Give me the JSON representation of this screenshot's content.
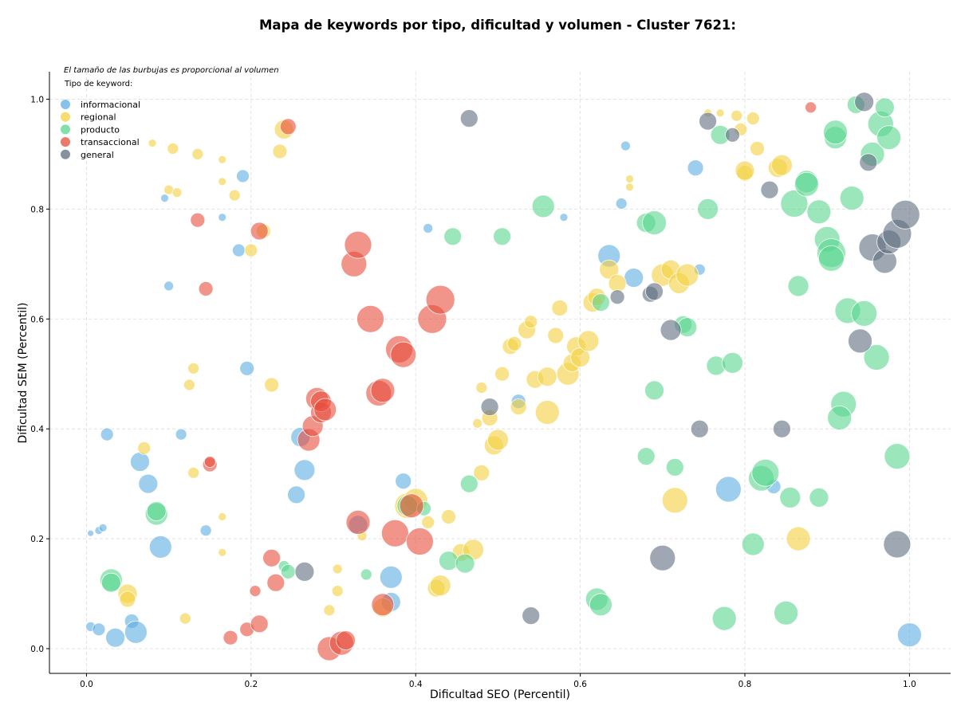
{
  "chart_data": {
    "type": "scatter",
    "title": "Mapa de keywords por tipo, dificultad y volumen - Cluster 7621:",
    "xlabel": "Dificultad SEO (Percentil)",
    "ylabel": "Dificultad SEM (Percentil)",
    "xlim": [
      -0.045,
      1.05
    ],
    "ylim": [
      -0.045,
      1.05
    ],
    "x_ticks": [
      "0.0",
      "0.2",
      "0.4",
      "0.6",
      "0.8",
      "1.0"
    ],
    "y_ticks": [
      "0.0",
      "0.2",
      "0.4",
      "0.6",
      "0.8",
      "1.0"
    ],
    "grid": true,
    "legend_position": "top-left",
    "annotation": "El tamaño de las burbujas es proporcional al volumen",
    "legend_title": "Tipo de keyword:",
    "series": [
      {
        "name": "informacional",
        "color": "#5dade2",
        "points": [
          [
            0.005,
            0.21,
            4
          ],
          [
            0.015,
            0.215,
            5
          ],
          [
            0.02,
            0.22,
            5
          ],
          [
            0.005,
            0.04,
            6
          ],
          [
            0.015,
            0.035,
            8
          ],
          [
            0.025,
            0.39,
            8
          ],
          [
            0.035,
            0.02,
            12
          ],
          [
            0.055,
            0.05,
            9
          ],
          [
            0.06,
            0.03,
            14
          ],
          [
            0.065,
            0.34,
            12
          ],
          [
            0.075,
            0.3,
            12
          ],
          [
            0.09,
            0.185,
            14
          ],
          [
            0.095,
            0.82,
            5
          ],
          [
            0.1,
            0.66,
            6
          ],
          [
            0.115,
            0.39,
            7
          ],
          [
            0.145,
            0.215,
            7
          ],
          [
            0.165,
            0.785,
            5
          ],
          [
            0.185,
            0.725,
            8
          ],
          [
            0.19,
            0.86,
            8
          ],
          [
            0.195,
            0.51,
            9
          ],
          [
            0.255,
            0.28,
            11
          ],
          [
            0.26,
            0.385,
            12
          ],
          [
            0.265,
            0.325,
            13
          ],
          [
            0.33,
            0.225,
            12
          ],
          [
            0.385,
            0.305,
            10
          ],
          [
            0.37,
            0.13,
            14
          ],
          [
            0.37,
            0.085,
            12
          ],
          [
            0.415,
            0.765,
            6
          ],
          [
            0.525,
            0.45,
            9
          ],
          [
            0.58,
            0.785,
            5
          ],
          [
            0.635,
            0.715,
            14
          ],
          [
            0.655,
            0.915,
            6
          ],
          [
            0.65,
            0.81,
            7
          ],
          [
            0.665,
            0.675,
            12
          ],
          [
            0.74,
            0.875,
            10
          ],
          [
            0.745,
            0.69,
            7
          ],
          [
            0.78,
            0.29,
            16
          ],
          [
            0.835,
            0.295,
            9
          ],
          [
            1.0,
            0.025,
            15
          ]
        ]
      },
      {
        "name": "regional",
        "color": "#f4d03f",
        "points": [
          [
            0.05,
            0.1,
            12
          ],
          [
            0.05,
            0.09,
            10
          ],
          [
            0.07,
            0.365,
            8
          ],
          [
            0.08,
            0.92,
            5
          ],
          [
            0.1,
            0.835,
            6
          ],
          [
            0.105,
            0.91,
            7
          ],
          [
            0.11,
            0.83,
            6
          ],
          [
            0.12,
            0.055,
            7
          ],
          [
            0.125,
            0.48,
            7
          ],
          [
            0.13,
            0.51,
            7
          ],
          [
            0.13,
            0.32,
            7
          ],
          [
            0.135,
            0.9,
            7
          ],
          [
            0.165,
            0.89,
            5
          ],
          [
            0.165,
            0.85,
            5
          ],
          [
            0.165,
            0.24,
            5
          ],
          [
            0.165,
            0.175,
            5
          ],
          [
            0.18,
            0.825,
            7
          ],
          [
            0.2,
            0.725,
            8
          ],
          [
            0.215,
            0.76,
            9
          ],
          [
            0.225,
            0.48,
            9
          ],
          [
            0.235,
            0.905,
            9
          ],
          [
            0.24,
            0.945,
            12
          ],
          [
            0.295,
            0.07,
            7
          ],
          [
            0.305,
            0.105,
            7
          ],
          [
            0.305,
            0.145,
            6
          ],
          [
            0.335,
            0.205,
            6
          ],
          [
            0.36,
            0.075,
            12
          ],
          [
            0.39,
            0.26,
            16
          ],
          [
            0.4,
            0.27,
            15
          ],
          [
            0.415,
            0.23,
            8
          ],
          [
            0.425,
            0.11,
            11
          ],
          [
            0.43,
            0.115,
            13
          ],
          [
            0.44,
            0.24,
            9
          ],
          [
            0.455,
            0.175,
            11
          ],
          [
            0.47,
            0.18,
            13
          ],
          [
            0.475,
            0.41,
            6
          ],
          [
            0.48,
            0.475,
            7
          ],
          [
            0.48,
            0.32,
            10
          ],
          [
            0.49,
            0.42,
            10
          ],
          [
            0.495,
            0.37,
            12
          ],
          [
            0.5,
            0.38,
            13
          ],
          [
            0.505,
            0.5,
            9
          ],
          [
            0.515,
            0.55,
            10
          ],
          [
            0.52,
            0.555,
            9
          ],
          [
            0.525,
            0.44,
            10
          ],
          [
            0.535,
            0.58,
            11
          ],
          [
            0.54,
            0.595,
            8
          ],
          [
            0.545,
            0.49,
            11
          ],
          [
            0.56,
            0.495,
            12
          ],
          [
            0.56,
            0.43,
            15
          ],
          [
            0.57,
            0.57,
            10
          ],
          [
            0.575,
            0.62,
            10
          ],
          [
            0.585,
            0.5,
            14
          ],
          [
            0.59,
            0.52,
            11
          ],
          [
            0.595,
            0.55,
            12
          ],
          [
            0.6,
            0.53,
            12
          ],
          [
            0.61,
            0.56,
            13
          ],
          [
            0.615,
            0.63,
            12
          ],
          [
            0.62,
            0.64,
            11
          ],
          [
            0.635,
            0.69,
            12
          ],
          [
            0.645,
            0.665,
            11
          ],
          [
            0.66,
            0.84,
            5
          ],
          [
            0.66,
            0.855,
            5
          ],
          [
            0.7,
            0.68,
            14
          ],
          [
            0.71,
            0.69,
            12
          ],
          [
            0.715,
            0.27,
            16
          ],
          [
            0.72,
            0.665,
            13
          ],
          [
            0.73,
            0.68,
            14
          ],
          [
            0.755,
            0.975,
            5
          ],
          [
            0.77,
            0.975,
            5
          ],
          [
            0.79,
            0.97,
            7
          ],
          [
            0.795,
            0.945,
            8
          ],
          [
            0.8,
            0.865,
            10
          ],
          [
            0.8,
            0.87,
            12
          ],
          [
            0.81,
            0.965,
            8
          ],
          [
            0.815,
            0.91,
            9
          ],
          [
            0.84,
            0.875,
            12
          ],
          [
            0.845,
            0.88,
            13
          ],
          [
            0.865,
            0.2,
            15
          ]
        ]
      },
      {
        "name": "producto",
        "color": "#58d68d",
        "points": [
          [
            0.03,
            0.125,
            14
          ],
          [
            0.03,
            0.12,
            12
          ],
          [
            0.085,
            0.245,
            14
          ],
          [
            0.085,
            0.25,
            12
          ],
          [
            0.24,
            0.15,
            7
          ],
          [
            0.245,
            0.14,
            9
          ],
          [
            0.34,
            0.135,
            7
          ],
          [
            0.39,
            0.26,
            13
          ],
          [
            0.41,
            0.255,
            9
          ],
          [
            0.44,
            0.16,
            12
          ],
          [
            0.445,
            0.75,
            11
          ],
          [
            0.46,
            0.155,
            12
          ],
          [
            0.465,
            0.3,
            11
          ],
          [
            0.505,
            0.75,
            11
          ],
          [
            0.555,
            0.805,
            14
          ],
          [
            0.62,
            0.09,
            14
          ],
          [
            0.625,
            0.08,
            14
          ],
          [
            0.625,
            0.63,
            11
          ],
          [
            0.68,
            0.775,
            12
          ],
          [
            0.68,
            0.35,
            11
          ],
          [
            0.69,
            0.775,
            15
          ],
          [
            0.69,
            0.47,
            12
          ],
          [
            0.715,
            0.33,
            11
          ],
          [
            0.725,
            0.59,
            11
          ],
          [
            0.73,
            0.585,
            12
          ],
          [
            0.755,
            0.8,
            13
          ],
          [
            0.765,
            0.515,
            12
          ],
          [
            0.77,
            0.935,
            12
          ],
          [
            0.785,
            0.52,
            13
          ],
          [
            0.775,
            0.055,
            15
          ],
          [
            0.81,
            0.19,
            14
          ],
          [
            0.82,
            0.31,
            16
          ],
          [
            0.825,
            0.32,
            17
          ],
          [
            0.85,
            0.065,
            15
          ],
          [
            0.855,
            0.275,
            13
          ],
          [
            0.86,
            0.81,
            17
          ],
          [
            0.865,
            0.66,
            13
          ],
          [
            0.875,
            0.85,
            14
          ],
          [
            0.875,
            0.845,
            15
          ],
          [
            0.89,
            0.795,
            15
          ],
          [
            0.89,
            0.275,
            12
          ],
          [
            0.9,
            0.745,
            16
          ],
          [
            0.905,
            0.72,
            18
          ],
          [
            0.905,
            0.71,
            16
          ],
          [
            0.91,
            0.93,
            14
          ],
          [
            0.91,
            0.94,
            15
          ],
          [
            0.92,
            0.445,
            16
          ],
          [
            0.915,
            0.42,
            15
          ],
          [
            0.925,
            0.615,
            16
          ],
          [
            0.93,
            0.82,
            15
          ],
          [
            0.935,
            0.99,
            11
          ],
          [
            0.945,
            0.61,
            16
          ],
          [
            0.955,
            0.9,
            15
          ],
          [
            0.965,
            0.955,
            16
          ],
          [
            0.97,
            0.985,
            12
          ],
          [
            0.96,
            0.53,
            16
          ],
          [
            0.975,
            0.93,
            15
          ],
          [
            0.985,
            0.35,
            16
          ]
        ]
      },
      {
        "name": "transaccional",
        "color": "#e74c3c",
        "points": [
          [
            0.135,
            0.78,
            9
          ],
          [
            0.145,
            0.655,
            9
          ],
          [
            0.15,
            0.335,
            9
          ],
          [
            0.15,
            0.34,
            7
          ],
          [
            0.175,
            0.02,
            9
          ],
          [
            0.195,
            0.035,
            9
          ],
          [
            0.205,
            0.105,
            7
          ],
          [
            0.21,
            0.045,
            11
          ],
          [
            0.21,
            0.76,
            11
          ],
          [
            0.225,
            0.165,
            11
          ],
          [
            0.23,
            0.12,
            11
          ],
          [
            0.245,
            0.95,
            10
          ],
          [
            0.27,
            0.38,
            14
          ],
          [
            0.275,
            0.405,
            13
          ],
          [
            0.28,
            0.455,
            14
          ],
          [
            0.285,
            0.43,
            13
          ],
          [
            0.285,
            0.45,
            13
          ],
          [
            0.29,
            0.435,
            14
          ],
          [
            0.295,
            0.0,
            15
          ],
          [
            0.31,
            0.01,
            15
          ],
          [
            0.315,
            0.015,
            12
          ],
          [
            0.325,
            0.7,
            16
          ],
          [
            0.33,
            0.735,
            17
          ],
          [
            0.33,
            0.23,
            15
          ],
          [
            0.345,
            0.6,
            17
          ],
          [
            0.355,
            0.465,
            16
          ],
          [
            0.36,
            0.47,
            15
          ],
          [
            0.36,
            0.08,
            14
          ],
          [
            0.375,
            0.21,
            17
          ],
          [
            0.38,
            0.545,
            17
          ],
          [
            0.385,
            0.535,
            16
          ],
          [
            0.395,
            0.26,
            15
          ],
          [
            0.405,
            0.195,
            17
          ],
          [
            0.42,
            0.6,
            18
          ],
          [
            0.43,
            0.635,
            18
          ],
          [
            0.88,
            0.985,
            7
          ]
        ]
      },
      {
        "name": "general",
        "color": "#5d6d7e",
        "points": [
          [
            0.265,
            0.14,
            12
          ],
          [
            0.465,
            0.965,
            11
          ],
          [
            0.49,
            0.44,
            11
          ],
          [
            0.54,
            0.06,
            11
          ],
          [
            0.645,
            0.64,
            9
          ],
          [
            0.685,
            0.645,
            10
          ],
          [
            0.69,
            0.65,
            11
          ],
          [
            0.7,
            0.165,
            16
          ],
          [
            0.71,
            0.58,
            13
          ],
          [
            0.745,
            0.4,
            11
          ],
          [
            0.755,
            0.96,
            11
          ],
          [
            0.785,
            0.935,
            9
          ],
          [
            0.83,
            0.835,
            11
          ],
          [
            0.845,
            0.4,
            11
          ],
          [
            0.94,
            0.56,
            15
          ],
          [
            0.945,
            0.995,
            12
          ],
          [
            0.95,
            0.885,
            11
          ],
          [
            0.955,
            0.73,
            17
          ],
          [
            0.97,
            0.705,
            15
          ],
          [
            0.975,
            0.74,
            15
          ],
          [
            0.985,
            0.755,
            18
          ],
          [
            0.985,
            0.19,
            17
          ],
          [
            0.995,
            0.79,
            18
          ]
        ]
      }
    ]
  }
}
